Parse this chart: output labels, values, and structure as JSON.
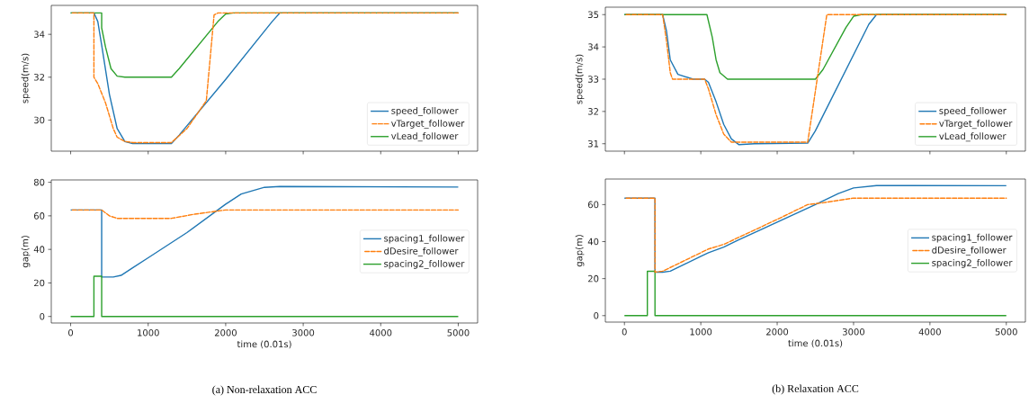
{
  "chart_data": [
    {
      "type": "line",
      "ylabel": "speed(m/s)",
      "xlim": [
        -250,
        5250
      ],
      "ylim": [
        28.55,
        35.35
      ],
      "xticks": [
        0,
        1000,
        2000,
        3000,
        4000,
        5000
      ],
      "yticks": [
        30,
        32,
        34
      ],
      "tick_labels": "y",
      "legend": "bottom right",
      "series": [
        {
          "name": "speed_follower",
          "color": "#1f77b4",
          "x": [
            0,
            300,
            350,
            400,
            500,
            600,
            700,
            800,
            1300,
            1400,
            2000,
            2600,
            2700,
            5000
          ],
          "values": [
            35,
            35,
            34.6,
            33.5,
            31.2,
            29.6,
            29.0,
            28.9,
            28.9,
            29.3,
            31.9,
            34.6,
            35,
            35
          ]
        },
        {
          "name": "vTarget_follower",
          "color": "#ff7f0e",
          "line_style": "dashed",
          "x": [
            0,
            300,
            300,
            350,
            450,
            550,
            600,
            700,
            800,
            1300,
            1500,
            1750,
            1850,
            1900,
            5000
          ],
          "values": [
            35,
            35,
            32,
            31.7,
            30.8,
            29.6,
            29.2,
            29.0,
            28.95,
            28.95,
            29.6,
            30.9,
            34.9,
            35,
            35
          ]
        },
        {
          "name": "vLead_follower",
          "color": "#2ca02c",
          "x": [
            0,
            400,
            400,
            450,
            520,
            600,
            700,
            1300,
            1400,
            1900,
            2000,
            2100,
            5000
          ],
          "values": [
            35,
            35,
            34.3,
            33.4,
            32.4,
            32.05,
            32,
            32,
            32.4,
            34.6,
            34.95,
            35,
            35
          ]
        }
      ]
    },
    {
      "type": "line",
      "xlabel": "time (0.01s)",
      "ylabel": "gap(m)",
      "xlim": [
        -250,
        5250
      ],
      "ylim": [
        -3.9,
        81.4
      ],
      "xticks": [
        0,
        1000,
        2000,
        3000,
        4000,
        5000
      ],
      "yticks": [
        0,
        20,
        40,
        60,
        80
      ],
      "legend": "right",
      "annotations": [
        "(a) Non-relaxation ACC"
      ],
      "series": [
        {
          "name": "spacing1_follower",
          "color": "#1f77b4",
          "x": [
            0,
            400,
            400,
            550,
            650,
            800,
            1000,
            1500,
            2000,
            2200,
            2500,
            2700,
            5000
          ],
          "values": [
            63.5,
            63.5,
            23.5,
            23.5,
            24.5,
            29,
            35,
            50,
            67,
            73,
            77,
            77.5,
            77.2
          ]
        },
        {
          "name": "dDesire_follower",
          "color": "#ff7f0e",
          "line_style": "dashed",
          "x": [
            0,
            400,
            500,
            600,
            1300,
            1600,
            2000,
            5000
          ],
          "values": [
            63.5,
            63.5,
            60,
            58.5,
            58.5,
            61,
            63.5,
            63.5
          ]
        },
        {
          "name": "spacing2_follower",
          "color": "#2ca02c",
          "x": [
            0,
            300,
            300,
            400,
            400,
            5000
          ],
          "values": [
            0,
            0,
            24,
            24,
            0,
            0
          ]
        }
      ]
    },
    {
      "type": "line",
      "ylabel": "speed(m/s)",
      "xlim": [
        -250,
        5250
      ],
      "ylim": [
        30.77,
        35.23
      ],
      "xticks": [
        0,
        1000,
        2000,
        3000,
        4000,
        5000
      ],
      "yticks": [
        31,
        32,
        33,
        34,
        35
      ],
      "tick_labels": "y",
      "legend": "bottom right",
      "series": [
        {
          "name": "speed_follower",
          "color": "#1f77b4",
          "x": [
            0,
            500,
            550,
            600,
            700,
            900,
            1050,
            1100,
            1200,
            1300,
            1400,
            1500,
            1700,
            2400,
            2500,
            3200,
            3300,
            5000
          ],
          "values": [
            35,
            35,
            34.5,
            33.6,
            33.15,
            33,
            33,
            32.9,
            32.3,
            31.6,
            31.15,
            30.97,
            31,
            31.02,
            31.4,
            34.7,
            35,
            35
          ]
        },
        {
          "name": "vTarget_follower",
          "color": "#ff7f0e",
          "line_style": "dashed",
          "x": [
            0,
            500,
            550,
            600,
            630,
            1050,
            1100,
            1200,
            1300,
            1400,
            1500,
            2400,
            2650,
            5000
          ],
          "values": [
            35,
            35,
            34.2,
            33.2,
            33,
            33,
            32.7,
            31.9,
            31.3,
            31.05,
            31.05,
            31.05,
            35,
            35
          ]
        },
        {
          "name": "vLead_follower",
          "color": "#2ca02c",
          "x": [
            0,
            1080,
            1150,
            1200,
            1250,
            1350,
            2500,
            2600,
            2900,
            3000,
            3100,
            5000
          ],
          "values": [
            35,
            35,
            34.3,
            33.6,
            33.2,
            33.0,
            33,
            33.3,
            34.6,
            34.95,
            35,
            35
          ]
        }
      ]
    },
    {
      "type": "line",
      "xlabel": "time (0.01s)",
      "ylabel": "gap(m)",
      "xlim": [
        -250,
        5250
      ],
      "ylim": [
        -3.5,
        73.8
      ],
      "xticks": [
        0,
        1000,
        2000,
        3000,
        4000,
        5000
      ],
      "yticks": [
        0,
        20,
        40,
        60
      ],
      "legend": "right",
      "annotations": [
        "(b) Relaxation ACC"
      ],
      "series": [
        {
          "name": "spacing1_follower",
          "color": "#1f77b4",
          "x": [
            0,
            400,
            400,
            500,
            600,
            800,
            1000,
            1100,
            1300,
            1500,
            2000,
            2500,
            2800,
            3000,
            3300,
            5000
          ],
          "values": [
            63.5,
            63.5,
            23.5,
            23.5,
            24,
            28,
            32,
            34,
            37,
            41,
            50.5,
            60,
            66,
            69,
            70.3,
            70.2
          ]
        },
        {
          "name": "dDesire_follower",
          "color": "#ff7f0e",
          "line_style": "dashed",
          "x": [
            0,
            400,
            400,
            500,
            800,
            1100,
            1300,
            2000,
            2400,
            2600,
            3000,
            5000
          ],
          "values": [
            63.5,
            63.5,
            23.5,
            24,
            30,
            36,
            38.5,
            52,
            60,
            61,
            63.5,
            63.5
          ]
        },
        {
          "name": "spacing2_follower",
          "color": "#2ca02c",
          "x": [
            0,
            300,
            300,
            400,
            400,
            5000
          ],
          "values": [
            0,
            0,
            24,
            24,
            0,
            0
          ]
        }
      ]
    }
  ]
}
